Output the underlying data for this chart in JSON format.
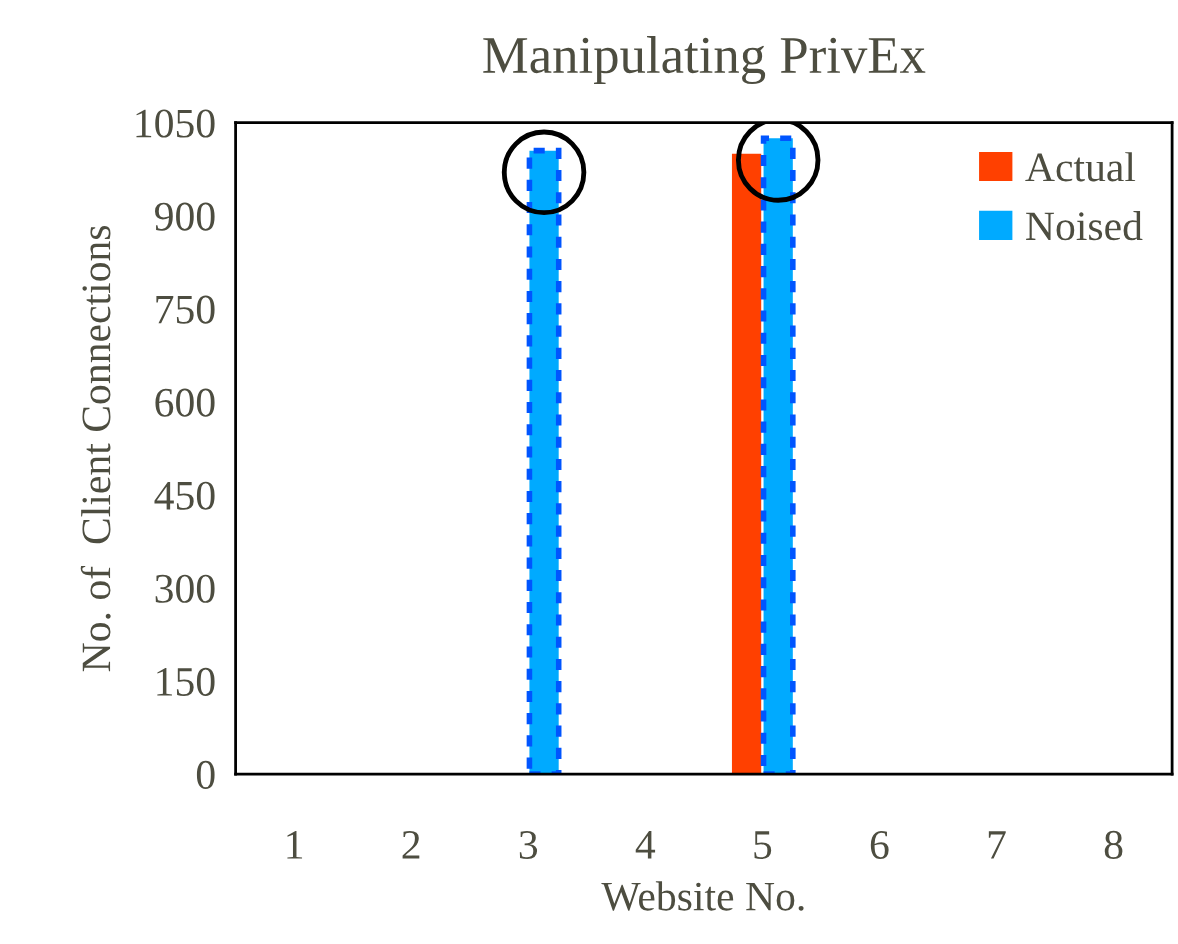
{
  "chart_data": {
    "type": "bar",
    "title": "Manipulating PrivEx",
    "xlabel": "Website No.",
    "ylabel": "No. of  Client Connections",
    "categories": [
      "1",
      "2",
      "3",
      "4",
      "5",
      "6",
      "7",
      "8"
    ],
    "series": [
      {
        "name": "Actual",
        "color": "#ff4000",
        "values": [
          0,
          0,
          0,
          0,
          1000,
          0,
          0,
          0
        ]
      },
      {
        "name": "Noised",
        "color": "#00aaff",
        "line_style": "dashed",
        "values": [
          0,
          0,
          1005,
          0,
          1025,
          0,
          0,
          0
        ]
      }
    ],
    "ylim": [
      0,
      1050
    ],
    "yticks": [
      0,
      150,
      300,
      450,
      600,
      750,
      900,
      1050
    ],
    "grid": false,
    "legend": "top right"
  }
}
